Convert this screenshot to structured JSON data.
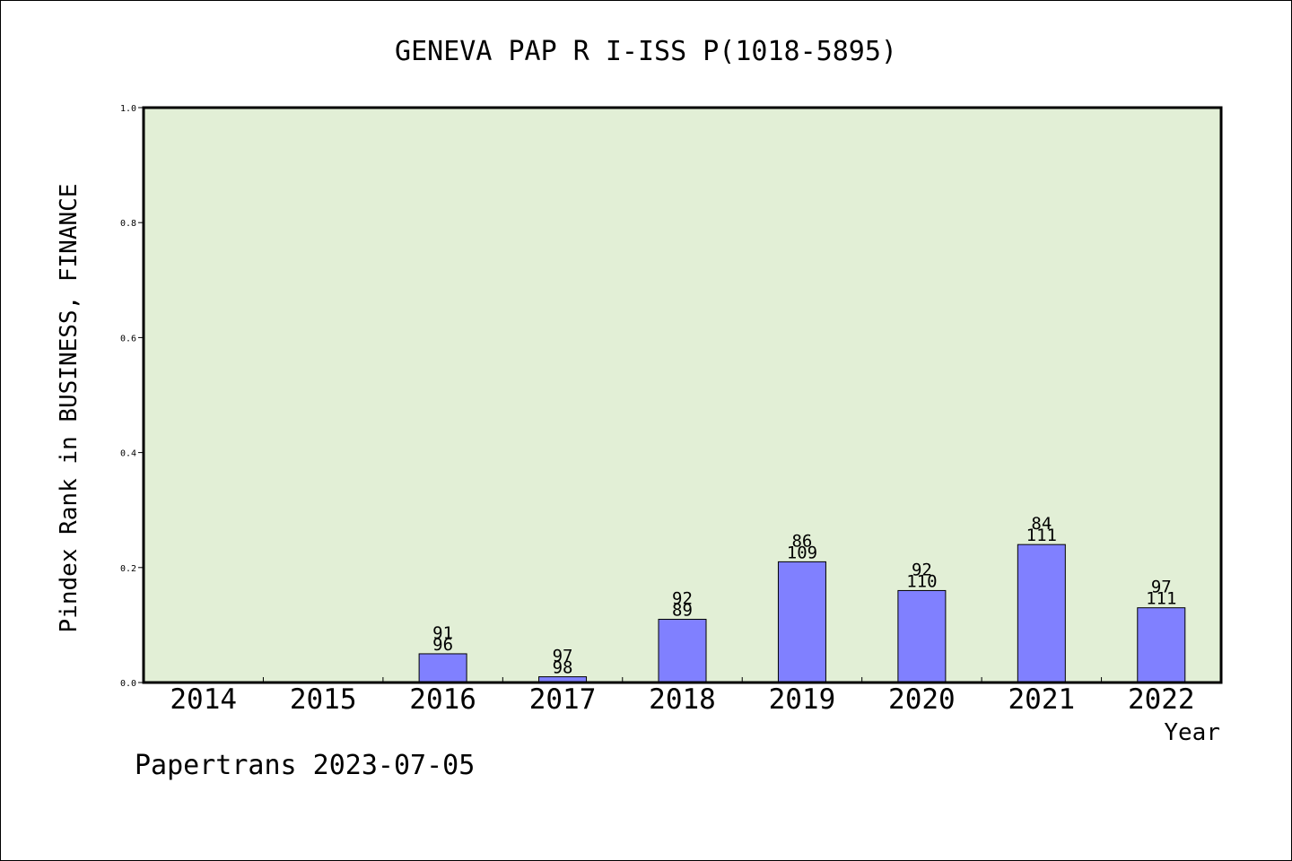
{
  "chart_data": {
    "type": "bar",
    "title": "GENEVA PAP R I-ISS P(1018-5895)",
    "xlabel": "Year",
    "ylabel": "Pindex Rank in BUSINESS, FINANCE",
    "ylim": [
      0,
      1.0
    ],
    "yticks": [
      "0.0",
      "0.2",
      "0.4",
      "0.6",
      "0.8",
      "1.0"
    ],
    "categories": [
      "2014",
      "2015",
      "2016",
      "2017",
      "2018",
      "2019",
      "2020",
      "2021",
      "2022"
    ],
    "values": [
      0,
      0,
      0.05,
      0.01,
      0.11,
      0.21,
      0.16,
      0.24,
      0.13
    ],
    "labels_top": [
      "",
      "",
      "91",
      "97",
      "92",
      "86",
      "92",
      "84",
      "97"
    ],
    "labels_bottom": [
      "",
      "",
      "96",
      "98",
      "89",
      "109",
      "110",
      "111",
      "111"
    ],
    "plot_background": "#e2efd6",
    "bar_color": "#8080ff",
    "grid": false,
    "footer": "Papertrans 2023-07-05"
  }
}
